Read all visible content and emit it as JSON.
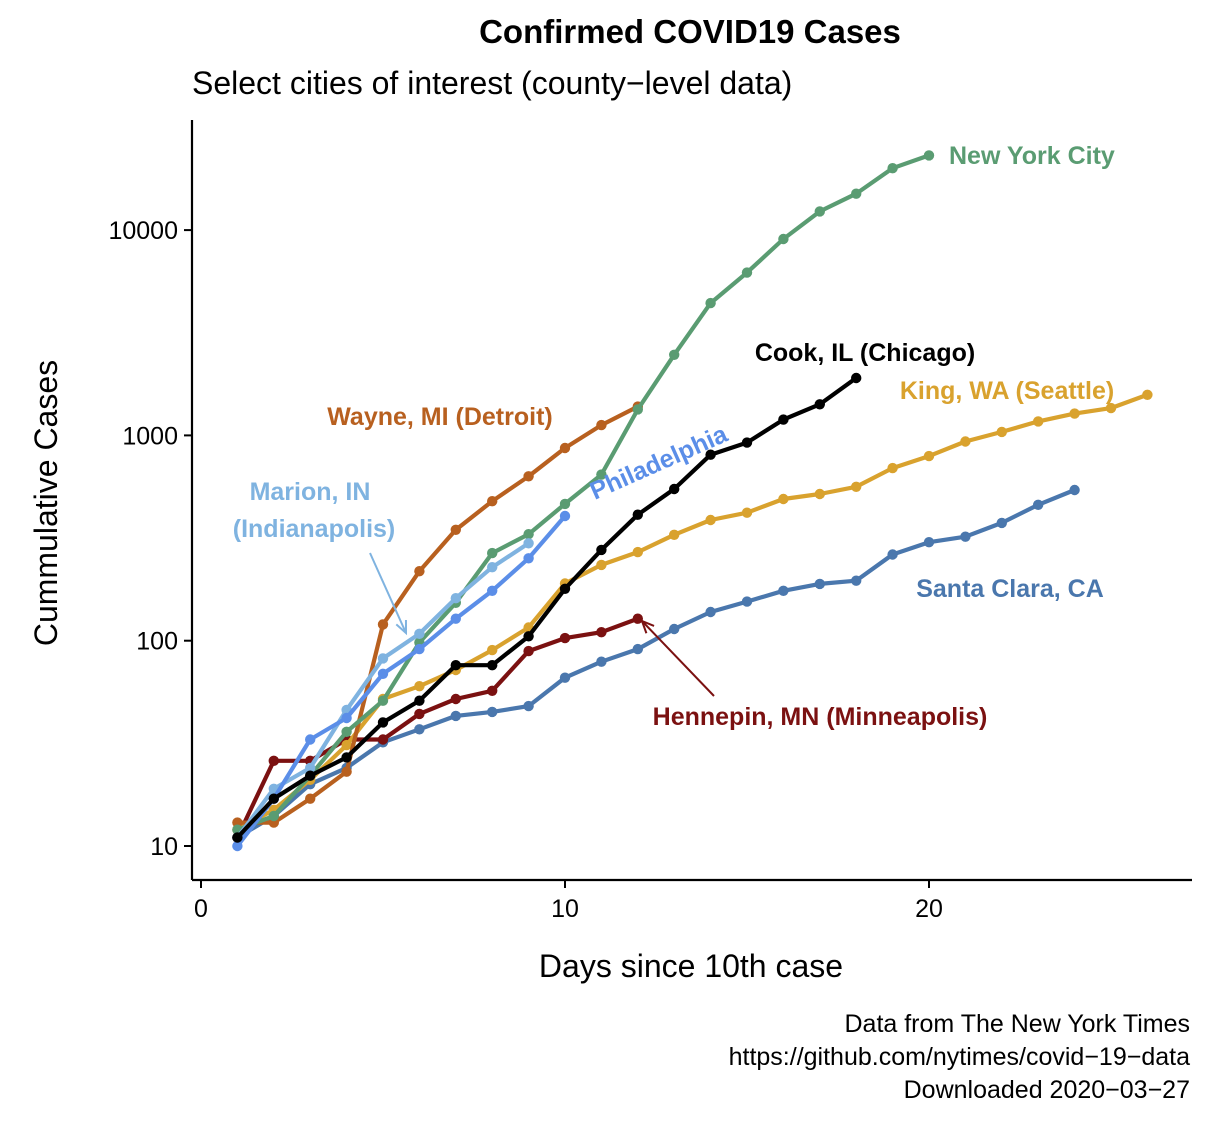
{
  "chart_data": {
    "type": "line",
    "title": "Confirmed COVID19 Cases",
    "subtitle": "Select cities of interest (county−level data)",
    "xlabel": "Days since 10th case",
    "ylabel": "Cummulative Cases",
    "y_scale": "log10",
    "xlim": [
      -0.3,
      27.3
    ],
    "ylim": [
      7.5,
      30000
    ],
    "x_ticks": [
      0,
      10,
      20
    ],
    "y_ticks": [
      10,
      100,
      1000,
      10000
    ],
    "x_tick_labels": [
      "0",
      "10",
      "20"
    ],
    "y_tick_labels": [
      "10",
      "100",
      "1000",
      "10000"
    ],
    "grid": false,
    "legend": "none (direct labels)",
    "caption": [
      "Data from The New York Times",
      "https://github.com/nytimes/covid−19−data",
      "Downloaded 2020−03−27"
    ],
    "series": [
      {
        "name": "Santa Clara, CA",
        "color": "#4a77ad",
        "x": [
          1,
          2,
          3,
          4,
          5,
          6,
          7,
          8,
          9,
          10,
          11,
          12,
          13,
          14,
          15,
          16,
          17,
          18,
          19,
          20,
          21,
          22,
          23,
          24
        ],
        "y": [
          11,
          14,
          20,
          24,
          32,
          37,
          43,
          45,
          48,
          66,
          79,
          91,
          114,
          138,
          155,
          175,
          189,
          196,
          263,
          302,
          321,
          375,
          459,
          542
        ]
      },
      {
        "name": "Hennepin, MN (Minneapolis)",
        "color": "#7b1111",
        "x": [
          1,
          2,
          3,
          4,
          5,
          6,
          7,
          8,
          9,
          10,
          11,
          12
        ],
        "y": [
          11,
          26,
          26,
          33,
          33,
          44,
          52,
          57,
          89,
          103,
          110,
          128
        ]
      },
      {
        "name": "King, WA (Seattle)",
        "color": "#d9a22e",
        "x": [
          1,
          2,
          3,
          4,
          5,
          6,
          7,
          8,
          9,
          10,
          11,
          12,
          13,
          14,
          15,
          16,
          17,
          18,
          19,
          20,
          21,
          22,
          23,
          24,
          25,
          26
        ],
        "y": [
          12,
          15,
          21,
          31,
          52,
          60,
          72,
          90,
          116,
          190,
          234,
          270,
          328,
          387,
          420,
          490,
          518,
          562,
          693,
          793,
          934,
          1040,
          1170,
          1277,
          1359,
          1577
        ]
      },
      {
        "name": "Wayne, MI (Detroit)",
        "color": "#b8601f",
        "x": [
          1,
          2,
          3,
          4,
          5,
          6,
          7,
          8,
          9,
          10,
          11,
          12
        ],
        "y": [
          13,
          13,
          17,
          23,
          120,
          218,
          347,
          478,
          632,
          868,
          1122,
          1382
        ]
      },
      {
        "name": "New York City",
        "color": "#5a9c72",
        "x": [
          1,
          2,
          3,
          4,
          5,
          6,
          7,
          8,
          9,
          10,
          11,
          12,
          13,
          14,
          15,
          16,
          17,
          18,
          19,
          20
        ],
        "y": [
          12,
          14,
          22,
          36,
          51,
          98,
          153,
          267,
          330,
          464,
          644,
          1339,
          2469,
          4408,
          6211,
          9045,
          12339,
          15034,
          20011,
          23112
        ]
      },
      {
        "name": "Marion, IN (Indianapolis)",
        "color": "#7fb3e0",
        "x": [
          1,
          2,
          3,
          4,
          5,
          6,
          7,
          8,
          9
        ],
        "y": [
          11,
          19,
          24,
          46,
          82,
          108,
          161,
          228,
          298
        ]
      },
      {
        "name": "Philadelphia",
        "color": "#5b8ee8",
        "x": [
          1,
          2,
          3,
          4,
          5,
          6,
          7,
          8,
          9,
          10
        ],
        "y": [
          10,
          17,
          33,
          42,
          69,
          91,
          128,
          175,
          252,
          405
        ]
      },
      {
        "name": "Cook, IL (Chicago)",
        "color": "#000000",
        "x": [
          1,
          2,
          3,
          4,
          5,
          6,
          7,
          8,
          9,
          10,
          11,
          12,
          13,
          14,
          15,
          16,
          17,
          18
        ],
        "y": [
          11,
          17,
          22,
          27,
          40,
          51,
          76,
          76,
          105,
          179,
          277,
          411,
          548,
          805,
          922,
          1194,
          1418,
          1904
        ]
      }
    ]
  }
}
